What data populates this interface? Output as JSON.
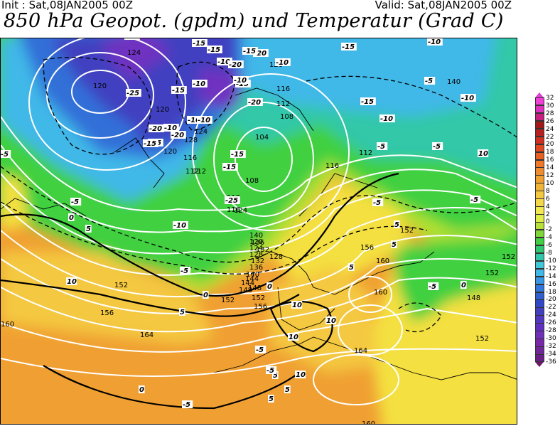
{
  "header": {
    "init": "Init : Sat,08JAN2005 00Z",
    "valid": "Valid: Sat,08JAN2005 00Z",
    "title": "850 hPa Geopot. (gpdm) und Temperatur (Grad C)"
  },
  "colors": {
    "orange": "#f0a030",
    "yellow": "#f4e040",
    "lime": "#b0e030",
    "green": "#40d040",
    "teal": "#30c8a8",
    "cyan": "#40b8e8",
    "blue": "#3070d8",
    "indigo": "#4040c0",
    "purple": "#7030c0"
  },
  "colorbar": {
    "labels": [
      "32",
      "30",
      "28",
      "26",
      "24",
      "22",
      "20",
      "18",
      "16",
      "14",
      "12",
      "10",
      "8",
      "6",
      "4",
      "2",
      "0",
      "-2",
      "-4",
      "-6",
      "-8",
      "-10",
      "-12",
      "-14",
      "-16",
      "-18",
      "-20",
      "-22",
      "-24",
      "-26",
      "-28",
      "-30",
      "-32",
      "-34",
      "-36"
    ],
    "colors": [
      "#f040d8",
      "#e030c0",
      "#c82080",
      "#a01818",
      "#b82020",
      "#d03020",
      "#e04820",
      "#e86020",
      "#f07828",
      "#f08c30",
      "#f0a030",
      "#f0b438",
      "#f4c840",
      "#f4d848",
      "#f4e850",
      "#e0ec48",
      "#b8e038",
      "#80d838",
      "#40d040",
      "#30c870",
      "#30c8a8",
      "#40c8d8",
      "#40b8e8",
      "#3898e8",
      "#3078e0",
      "#3060d0",
      "#3048c8",
      "#4040c0",
      "#5038c0",
      "#6030c0",
      "#7030b8",
      "#7828a8",
      "#702898",
      "#6a2088"
    ]
  },
  "geopotential_labels": [
    {
      "t": "124"
    },
    {
      "t": "120"
    },
    {
      "t": "120"
    },
    {
      "t": "128"
    },
    {
      "t": "124"
    },
    {
      "t": "120"
    },
    {
      "t": "116"
    },
    {
      "t": "112"
    },
    {
      "t": "108"
    },
    {
      "t": "104"
    },
    {
      "t": "112"
    },
    {
      "t": "116"
    },
    {
      "t": "112"
    },
    {
      "t": "108"
    },
    {
      "t": "116"
    },
    {
      "t": "112"
    },
    {
      "t": "124"
    },
    {
      "t": "120"
    },
    {
      "t": "116"
    },
    {
      "t": "112"
    },
    {
      "t": "128"
    },
    {
      "t": "132"
    },
    {
      "t": "136"
    },
    {
      "t": "140"
    },
    {
      "t": "144"
    },
    {
      "t": "148"
    },
    {
      "t": "152"
    },
    {
      "t": "156"
    },
    {
      "t": "160"
    },
    {
      "t": "160"
    },
    {
      "t": "120"
    },
    {
      "t": "124"
    },
    {
      "t": "128"
    },
    {
      "t": "132"
    },
    {
      "t": "136"
    },
    {
      "t": "140"
    },
    {
      "t": "144"
    },
    {
      "t": "148"
    },
    {
      "t": "152"
    },
    {
      "t": "156"
    },
    {
      "t": "160"
    },
    {
      "t": "164"
    },
    {
      "t": "164"
    },
    {
      "t": "152"
    },
    {
      "t": "152"
    },
    {
      "t": "148"
    },
    {
      "t": "152"
    },
    {
      "t": "152"
    },
    {
      "t": "140"
    },
    {
      "t": "160"
    },
    {
      "t": "152"
    },
    {
      "t": "156"
    }
  ],
  "temperature_labels": [
    {
      "t": "-25"
    },
    {
      "t": "-20"
    },
    {
      "t": "-15"
    },
    {
      "t": "-10"
    },
    {
      "t": "-25"
    },
    {
      "t": "-15"
    },
    {
      "t": "-10"
    },
    {
      "t": "-20"
    },
    {
      "t": "-15"
    },
    {
      "t": "-20"
    },
    {
      "t": "-20"
    },
    {
      "t": "-10"
    },
    {
      "t": "-15"
    },
    {
      "t": "-10"
    },
    {
      "t": "-15"
    },
    {
      "t": "-15"
    },
    {
      "t": "-10"
    },
    {
      "t": "-5"
    },
    {
      "t": "-5"
    },
    {
      "t": "-10"
    },
    {
      "t": "-10"
    },
    {
      "t": "-5"
    },
    {
      "t": "-5"
    },
    {
      "t": "0"
    },
    {
      "t": "-5"
    },
    {
      "t": "-15"
    },
    {
      "t": "-15"
    },
    {
      "t": "-10"
    },
    {
      "t": "-10"
    },
    {
      "t": "-5"
    },
    {
      "t": "0"
    },
    {
      "t": "5"
    },
    {
      "t": "0"
    },
    {
      "t": "5"
    },
    {
      "t": "5"
    },
    {
      "t": "10"
    },
    {
      "t": "10"
    },
    {
      "t": "10"
    },
    {
      "t": "5"
    },
    {
      "t": "5"
    },
    {
      "t": "-5"
    },
    {
      "t": "0"
    },
    {
      "t": "-5"
    },
    {
      "t": "10"
    },
    {
      "t": "10"
    },
    {
      "t": "10"
    },
    {
      "t": "5"
    },
    {
      "t": "5"
    },
    {
      "t": "5"
    },
    {
      "t": "-10"
    },
    {
      "t": "-15"
    },
    {
      "t": "-15"
    },
    {
      "t": "-25"
    },
    {
      "t": "-20"
    },
    {
      "t": "-15"
    },
    {
      "t": "-5"
    },
    {
      "t": "-5"
    },
    {
      "t": "0"
    },
    {
      "t": "-5"
    },
    {
      "t": "-5"
    },
    {
      "t": "-10"
    }
  ]
}
